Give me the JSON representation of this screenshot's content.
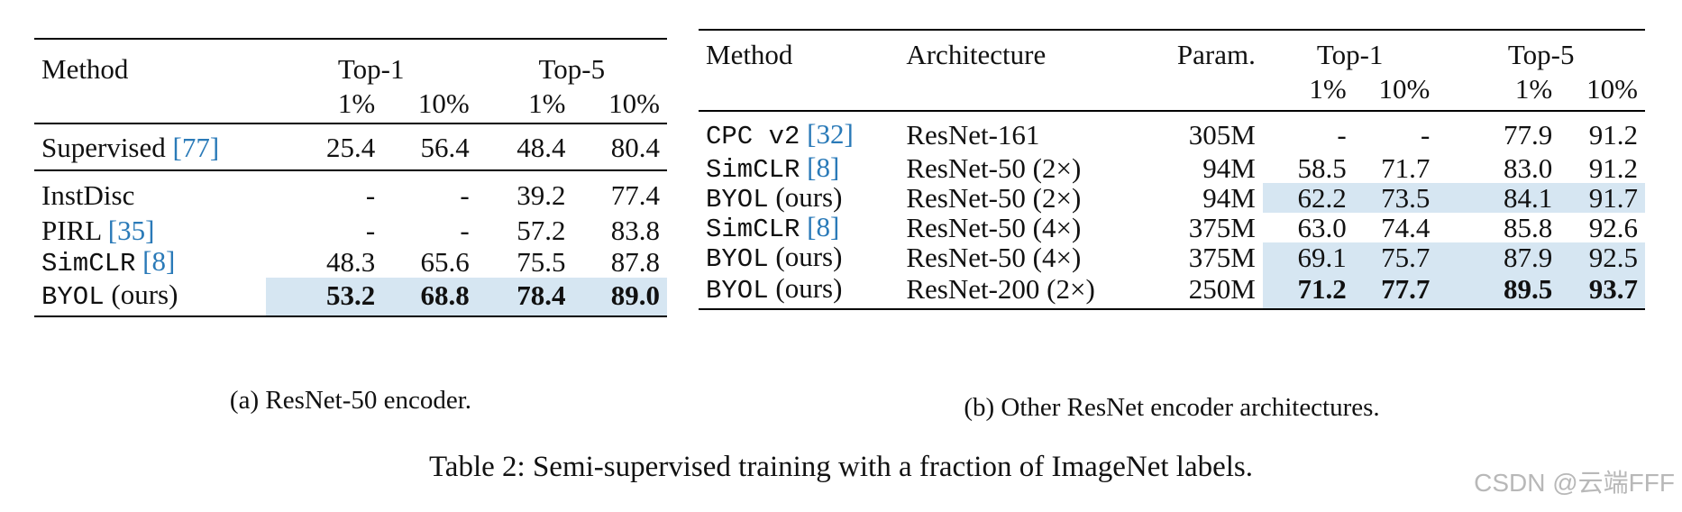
{
  "table_a": {
    "headers": {
      "method": "Method",
      "top1": "Top-1",
      "top5": "Top-5",
      "pct1": "1%",
      "pct10": "10%"
    },
    "rows": [
      {
        "name": "Supervised",
        "ref": "[77]",
        "suffix": "",
        "values": [
          "25.4",
          "56.4",
          "48.4",
          "80.4"
        ]
      },
      {
        "name": "InstDisc",
        "ref": "",
        "suffix": "",
        "values": [
          "-",
          "-",
          "39.2",
          "77.4"
        ]
      },
      {
        "name": "PIRL",
        "ref": "[35]",
        "suffix": "",
        "values": [
          "-",
          "-",
          "57.2",
          "83.8"
        ]
      },
      {
        "name": "SimCLR",
        "ref": "[8]",
        "suffix": "",
        "values": [
          "48.3",
          "65.6",
          "75.5",
          "87.8"
        ]
      },
      {
        "name": "BYOL",
        "ref": "",
        "suffix": "(ours)",
        "values": [
          "53.2",
          "68.8",
          "78.4",
          "89.0"
        ]
      }
    ],
    "caption": "(a) ResNet-50 encoder."
  },
  "table_b": {
    "headers": {
      "method": "Method",
      "architecture": "Architecture",
      "param": "Param.",
      "top1": "Top-1",
      "top5": "Top-5",
      "pct1": "1%",
      "pct10": "10%"
    },
    "rows": [
      {
        "name": "CPC v2",
        "ref": "[32]",
        "suffix": "",
        "arch": "ResNet-161",
        "param": "305M",
        "values": [
          "-",
          "-",
          "77.9",
          "91.2"
        ]
      },
      {
        "name": "SimCLR",
        "ref": "[8]",
        "suffix": "",
        "arch": "ResNet-50 (2×)",
        "param": "94M",
        "values": [
          "58.5",
          "71.7",
          "83.0",
          "91.2"
        ]
      },
      {
        "name": "BYOL",
        "ref": "",
        "suffix": "(ours)",
        "arch": "ResNet-50 (2×)",
        "param": "94M",
        "values": [
          "62.2",
          "73.5",
          "84.1",
          "91.7"
        ]
      },
      {
        "name": "SimCLR",
        "ref": "[8]",
        "suffix": "",
        "arch": "ResNet-50 (4×)",
        "param": "375M",
        "values": [
          "63.0",
          "74.4",
          "85.8",
          "92.6"
        ]
      },
      {
        "name": "BYOL",
        "ref": "",
        "suffix": "(ours)",
        "arch": "ResNet-50 (4×)",
        "param": "375M",
        "values": [
          "69.1",
          "75.7",
          "87.9",
          "92.5"
        ]
      },
      {
        "name": "BYOL",
        "ref": "",
        "suffix": "(ours)",
        "arch": "ResNet-200 (2×)",
        "param": "250M",
        "values": [
          "71.2",
          "77.7",
          "89.5",
          "93.7"
        ]
      }
    ],
    "caption": "(b) Other ResNet encoder architectures."
  },
  "main_caption": "Table 2: Semi-supervised training with a fraction of ImageNet labels.",
  "watermark": "CSDN @云端FFF",
  "colors": {
    "highlight": "#d6e6f2",
    "reference": "#2a7ab8"
  }
}
